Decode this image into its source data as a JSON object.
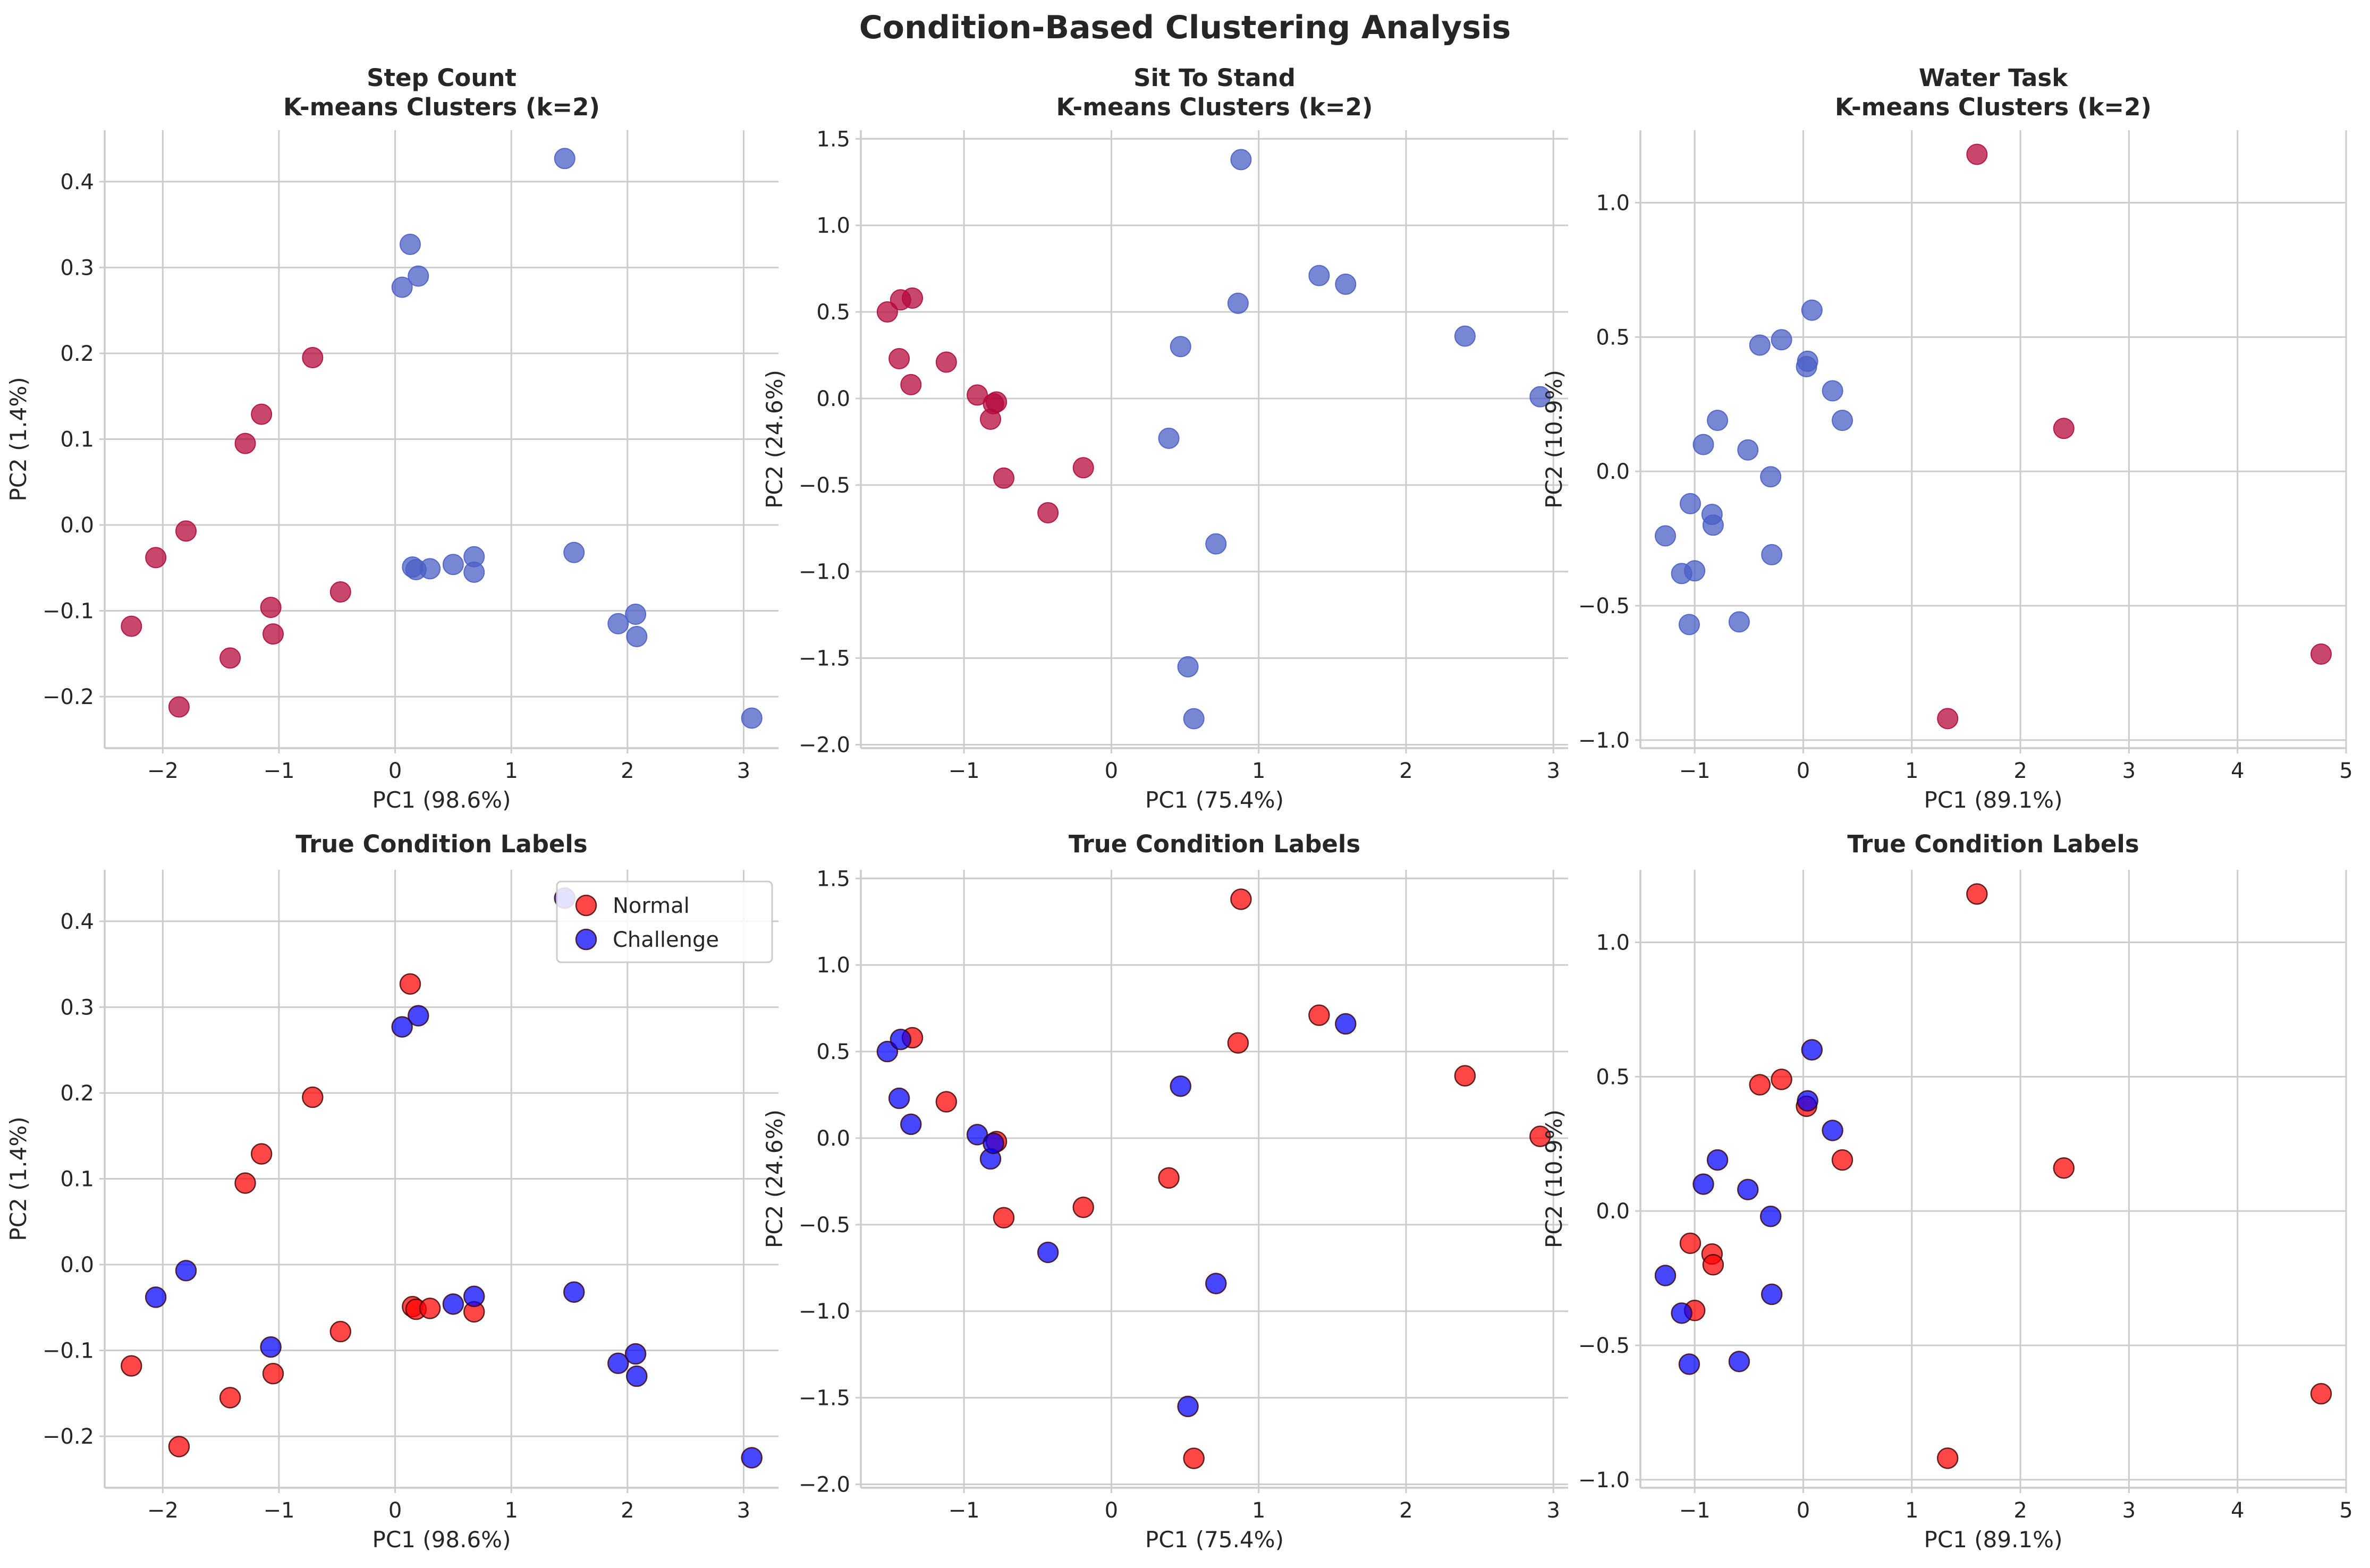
{
  "figure": {
    "title": "Condition-Based Clustering Analysis"
  },
  "colors": {
    "cluster_0": "#4a5fc6",
    "cluster_1": "#b40a3c",
    "normal": "#ff0000",
    "challenge": "#0000ff",
    "grid": "#cccccc",
    "text": "#262626"
  },
  "chart_data": [
    {
      "type": "scatter",
      "title": "Step Count\nK-means Clusters (k=2)",
      "xlabel": "PC1 (98.6%)",
      "ylabel": "PC2 (1.4%)",
      "xlim": [
        -2.5,
        3.3
      ],
      "ylim": [
        -0.26,
        0.46
      ],
      "xticks": [
        -2,
        -1,
        0,
        1,
        2,
        3
      ],
      "xtick_labels": [
        "−2",
        "−1",
        "0",
        "1",
        "2",
        "3"
      ],
      "yticks": [
        -0.2,
        -0.1,
        0.0,
        0.1,
        0.2,
        0.3,
        0.4
      ],
      "ytick_labels": [
        "−0.2",
        "−0.1",
        "0.0",
        "0.1",
        "0.2",
        "0.3",
        "0.4"
      ],
      "grid": true,
      "color_by": "cluster",
      "series": [
        {
          "key": "cluster_1",
          "x": [
            -2.27,
            -2.06,
            -1.86,
            -1.8,
            -1.42,
            -1.29,
            -1.15,
            -1.07,
            -1.05,
            -0.71,
            -0.47
          ],
          "y": [
            -0.118,
            -0.038,
            -0.212,
            -0.007,
            -0.155,
            0.095,
            0.129,
            -0.096,
            -0.127,
            0.195,
            -0.078
          ]
        },
        {
          "key": "cluster_0",
          "x": [
            0.06,
            0.13,
            0.15,
            0.18,
            0.2,
            0.3,
            0.5,
            0.68,
            0.68,
            1.46,
            1.54,
            1.92,
            2.07,
            2.08,
            3.07
          ],
          "y": [
            0.277,
            0.327,
            -0.049,
            -0.052,
            0.29,
            -0.051,
            -0.046,
            -0.037,
            -0.055,
            0.427,
            -0.032,
            -0.115,
            -0.104,
            -0.13,
            -0.225
          ]
        }
      ]
    },
    {
      "type": "scatter",
      "title": "Sit To Stand\nK-means Clusters (k=2)",
      "xlabel": "PC1 (75.4%)",
      "ylabel": "PC2 (24.6%)",
      "xlim": [
        -1.7,
        3.1
      ],
      "ylim": [
        -2.02,
        1.55
      ],
      "xticks": [
        -1,
        0,
        1,
        2,
        3
      ],
      "xtick_labels": [
        "−1",
        "0",
        "1",
        "2",
        "3"
      ],
      "yticks": [
        -2.0,
        -1.5,
        -1.0,
        -0.5,
        0.0,
        0.5,
        1.0,
        1.5
      ],
      "ytick_labels": [
        "−2.0",
        "−1.5",
        "−1.0",
        "−0.5",
        "0.0",
        "0.5",
        "1.0",
        "1.5"
      ],
      "grid": true,
      "color_by": "cluster",
      "series": [
        {
          "key": "cluster_1",
          "x": [
            -1.52,
            -1.44,
            -1.43,
            -1.36,
            -1.35,
            -1.12,
            -0.91,
            -0.82,
            -0.8,
            -0.78,
            -0.73,
            -0.43,
            -0.19
          ],
          "y": [
            0.5,
            0.23,
            0.57,
            0.08,
            0.58,
            0.21,
            0.02,
            -0.12,
            -0.03,
            -0.02,
            -0.46,
            -0.66,
            -0.4
          ]
        },
        {
          "key": "cluster_0",
          "x": [
            0.39,
            0.47,
            0.52,
            0.56,
            0.71,
            0.86,
            0.88,
            1.41,
            1.59,
            2.4,
            2.91
          ],
          "y": [
            -0.23,
            0.3,
            -1.55,
            -1.85,
            -0.84,
            0.55,
            1.38,
            0.71,
            0.66,
            0.36,
            0.01
          ]
        }
      ]
    },
    {
      "type": "scatter",
      "title": "Water Task\nK-means Clusters (k=2)",
      "xlabel": "PC1 (89.1%)",
      "ylabel": "PC2 (10.9%)",
      "xlim": [
        -1.5,
        5.0
      ],
      "ylim": [
        -1.03,
        1.27
      ],
      "xticks": [
        -1,
        0,
        1,
        2,
        3,
        4,
        5
      ],
      "xtick_labels": [
        "−1",
        "0",
        "1",
        "2",
        "3",
        "4",
        "5"
      ],
      "yticks": [
        -1.0,
        -0.5,
        0.0,
        0.5,
        1.0
      ],
      "ytick_labels": [
        "−1.0",
        "−0.5",
        "0.0",
        "0.5",
        "1.0"
      ],
      "grid": true,
      "color_by": "cluster",
      "series": [
        {
          "key": "cluster_0",
          "x": [
            -1.27,
            -1.12,
            -1.05,
            -1.04,
            -1.0,
            -0.92,
            -0.84,
            -0.83,
            -0.79,
            -0.59,
            -0.51,
            -0.4,
            -0.3,
            -0.29,
            -0.2,
            0.03,
            0.04,
            0.08,
            0.27,
            0.36
          ],
          "y": [
            -0.24,
            -0.38,
            -0.57,
            -0.12,
            -0.37,
            0.1,
            -0.16,
            -0.2,
            0.19,
            -0.56,
            0.08,
            0.47,
            -0.02,
            -0.31,
            0.49,
            0.39,
            0.41,
            0.6,
            0.3,
            0.19
          ]
        },
        {
          "key": "cluster_1",
          "x": [
            1.33,
            1.6,
            2.4,
            4.77
          ],
          "y": [
            -0.92,
            1.18,
            0.16,
            -0.68
          ]
        }
      ]
    },
    {
      "type": "scatter",
      "title": "True Condition Labels",
      "xlabel": "PC1 (98.6%)",
      "ylabel": "PC2 (1.4%)",
      "xlim": [
        -2.5,
        3.3
      ],
      "ylim": [
        -0.26,
        0.46
      ],
      "xticks": [
        -2,
        -1,
        0,
        1,
        2,
        3
      ],
      "xtick_labels": [
        "−2",
        "−1",
        "0",
        "1",
        "2",
        "3"
      ],
      "yticks": [
        -0.2,
        -0.1,
        0.0,
        0.1,
        0.2,
        0.3,
        0.4
      ],
      "ytick_labels": [
        "−0.2",
        "−0.1",
        "0.0",
        "0.1",
        "0.2",
        "0.3",
        "0.4"
      ],
      "grid": true,
      "color_by": "condition",
      "legend": {
        "placement": "top-right"
      },
      "series": [
        {
          "key": "normal",
          "name": "Normal",
          "x": [
            -2.27,
            -1.86,
            -1.42,
            -1.29,
            -1.15,
            -1.05,
            -0.71,
            -0.47,
            0.13,
            0.15,
            0.18,
            0.3,
            0.68
          ],
          "y": [
            -0.118,
            -0.212,
            -0.155,
            0.095,
            0.129,
            -0.127,
            0.195,
            -0.078,
            0.327,
            -0.049,
            -0.052,
            -0.051,
            -0.055
          ]
        },
        {
          "key": "challenge",
          "name": "Challenge",
          "x": [
            -2.06,
            -1.8,
            -1.07,
            0.06,
            0.2,
            0.5,
            0.68,
            1.46,
            1.54,
            1.92,
            2.07,
            2.08,
            3.07
          ],
          "y": [
            -0.038,
            -0.007,
            -0.096,
            0.277,
            0.29,
            -0.046,
            -0.037,
            0.427,
            -0.032,
            -0.115,
            -0.104,
            -0.13,
            -0.225
          ]
        }
      ]
    },
    {
      "type": "scatter",
      "title": "True Condition Labels",
      "xlabel": "PC1 (75.4%)",
      "ylabel": "PC2 (24.6%)",
      "xlim": [
        -1.7,
        3.1
      ],
      "ylim": [
        -2.02,
        1.55
      ],
      "xticks": [
        -1,
        0,
        1,
        2,
        3
      ],
      "xtick_labels": [
        "−1",
        "0",
        "1",
        "2",
        "3"
      ],
      "yticks": [
        -2.0,
        -1.5,
        -1.0,
        -0.5,
        0.0,
        0.5,
        1.0,
        1.5
      ],
      "ytick_labels": [
        "−2.0",
        "−1.5",
        "−1.0",
        "−0.5",
        "0.0",
        "0.5",
        "1.0",
        "1.5"
      ],
      "grid": true,
      "color_by": "condition",
      "series": [
        {
          "key": "normal",
          "x": [
            -1.35,
            -1.12,
            -0.78,
            -0.73,
            -0.19,
            0.39,
            0.56,
            0.86,
            0.88,
            1.41,
            2.4,
            2.91
          ],
          "y": [
            0.58,
            0.21,
            -0.02,
            -0.46,
            -0.4,
            -0.23,
            -1.85,
            0.55,
            1.38,
            0.71,
            0.36,
            0.01
          ]
        },
        {
          "key": "challenge",
          "x": [
            -1.52,
            -1.44,
            -1.43,
            -1.36,
            -0.91,
            -0.82,
            -0.8,
            -0.43,
            0.47,
            0.52,
            0.71,
            1.59
          ],
          "y": [
            0.5,
            0.23,
            0.57,
            0.08,
            0.02,
            -0.12,
            -0.03,
            -0.66,
            0.3,
            -1.55,
            -0.84,
            0.66
          ]
        }
      ]
    },
    {
      "type": "scatter",
      "title": "True Condition Labels",
      "xlabel": "PC1 (89.1%)",
      "ylabel": "PC2 (10.9%)",
      "xlim": [
        -1.5,
        5.0
      ],
      "ylim": [
        -1.03,
        1.27
      ],
      "xticks": [
        -1,
        0,
        1,
        2,
        3,
        4,
        5
      ],
      "xtick_labels": [
        "−1",
        "0",
        "1",
        "2",
        "3",
        "4",
        "5"
      ],
      "yticks": [
        -1.0,
        -0.5,
        0.0,
        0.5,
        1.0
      ],
      "ytick_labels": [
        "−1.0",
        "−0.5",
        "0.0",
        "0.5",
        "1.0"
      ],
      "grid": true,
      "color_by": "condition",
      "series": [
        {
          "key": "normal",
          "x": [
            -1.04,
            -1.0,
            -0.84,
            -0.83,
            -0.4,
            -0.2,
            0.03,
            0.36,
            1.33,
            1.6,
            2.4,
            4.77
          ],
          "y": [
            -0.12,
            -0.37,
            -0.16,
            -0.2,
            0.47,
            0.49,
            0.39,
            0.19,
            -0.92,
            1.18,
            0.16,
            -0.68
          ]
        },
        {
          "key": "challenge",
          "x": [
            -1.27,
            -1.12,
            -1.05,
            -0.92,
            -0.79,
            -0.59,
            -0.51,
            -0.3,
            -0.29,
            0.04,
            0.08,
            0.27
          ],
          "y": [
            -0.24,
            -0.38,
            -0.57,
            0.1,
            0.19,
            -0.56,
            0.08,
            -0.02,
            -0.31,
            0.41,
            0.6,
            0.3
          ]
        }
      ]
    }
  ]
}
